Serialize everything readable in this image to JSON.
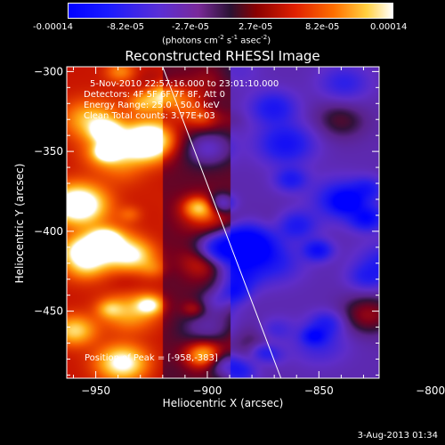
{
  "colorbar": {
    "ticks": [
      "-0.00014",
      "-8.2e-05",
      "-2.7e-05",
      "2.7e-05",
      "8.2e-05",
      "0.00014"
    ],
    "unit_base": "(photons cm",
    "unit_exp1": "-2",
    "unit_mid1": " s",
    "unit_exp2": "-1",
    "unit_mid2": " asec",
    "unit_exp3": "-2",
    "unit_end": ")"
  },
  "annotations": {
    "time_range": "5-Nov-2010 22:57:16.000 to 23:01:10.000",
    "detectors": "Detectors: 4F 5F 6F 7F 8F, Att 0",
    "energy": "Energy Range: 25.0 - 50.0 keV",
    "method": "Clean    Total counts: 3.77E+03",
    "peak": "Position of Peak = [-958,-383]"
  },
  "footer": {
    "date": "3-Aug-2013 01:34"
  },
  "chart_data": {
    "type": "heatmap",
    "title": "Reconstructed RHESSI Image",
    "xlabel": "Heliocentric X (arcsec)",
    "ylabel": "Heliocentric Y (arcsec)",
    "xlim": [
      -963,
      -823
    ],
    "ylim": [
      -492,
      -297
    ],
    "x_ticks": [
      -950,
      -900,
      -850,
      -800
    ],
    "y_ticks": [
      -300,
      -350,
      -400,
      -450
    ],
    "x_tick_labels": [
      "−950",
      "−900",
      "−850",
      "−800"
    ],
    "y_tick_labels": [
      "−300",
      "−350",
      "−400",
      "−450"
    ],
    "limb_line": [
      [
        -920,
        -297
      ],
      [
        -867,
        -492
      ]
    ],
    "peak_position": [
      -958,
      -383
    ],
    "value_range": [
      -0.00014,
      0.00014
    ],
    "sources": [
      {
        "x": -958,
        "y": -383,
        "value": 0.00014
      },
      {
        "x": -945,
        "y": -410,
        "value": 9e-05
      },
      {
        "x": -930,
        "y": -345,
        "value": 8e-05
      },
      {
        "x": -952,
        "y": -330,
        "value": 7e-05
      },
      {
        "x": -910,
        "y": -320,
        "value": 6e-05
      },
      {
        "x": -935,
        "y": -450,
        "value": 6e-05
      },
      {
        "x": -900,
        "y": -390,
        "value": 5e-05
      },
      {
        "x": -828,
        "y": -452,
        "value": 6e-05
      },
      {
        "x": -840,
        "y": -330,
        "value": 4e-05
      },
      {
        "x": -880,
        "y": -470,
        "value": 3e-05
      },
      {
        "x": -865,
        "y": -345,
        "value": -8e-05
      },
      {
        "x": -840,
        "y": -380,
        "value": -8e-05
      },
      {
        "x": -820,
        "y": -420,
        "value": -6e-05
      },
      {
        "x": -870,
        "y": -420,
        "value": -5e-05
      },
      {
        "x": -900,
        "y": -460,
        "value": -4e-05
      },
      {
        "x": -850,
        "y": -470,
        "value": -4e-05
      }
    ]
  }
}
